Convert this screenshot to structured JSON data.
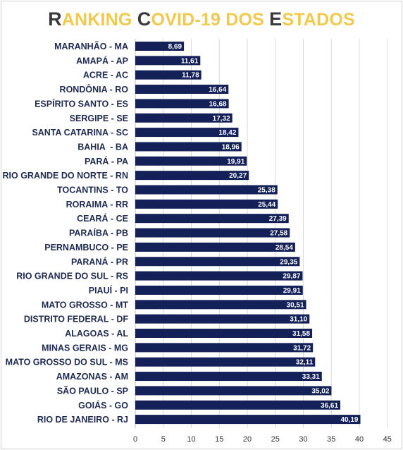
{
  "title": {
    "segments": [
      {
        "text": "R",
        "style": "cap"
      },
      {
        "text": "ANKING ",
        "style": "rest"
      },
      {
        "text": "C",
        "style": "cap"
      },
      {
        "text": "OVID-19 DOS ",
        "style": "rest"
      },
      {
        "text": "E",
        "style": "cap"
      },
      {
        "text": "STADOS",
        "style": "rest"
      }
    ]
  },
  "colors": {
    "bar": "#142159",
    "title_cap": "#3a3a3a",
    "title_rest": "#f2c94c",
    "grid": "#d9d9d9"
  },
  "chart_data": {
    "type": "bar",
    "orientation": "horizontal",
    "title": "RANKING COVID-19 DOS ESTADOS",
    "xlabel": "",
    "ylabel": "",
    "xlim": [
      0,
      45
    ],
    "xticks": [
      0,
      5,
      10,
      15,
      20,
      25,
      30,
      35,
      40,
      45
    ],
    "grid": true,
    "legend": "none",
    "categories": [
      "MARANHÃO - MA",
      "AMAPÁ - AP",
      "ACRE - AC",
      "RONDÔNIA - RO",
      "ESPÍRITO SANTO - ES",
      "SERGIPE - SE",
      "SANTA CATARINA - SC",
      "BAHIA  - BA",
      "PARÁ - PA",
      "RIO GRANDE DO NORTE - RN",
      "TOCANTINS - TO",
      "RORAIMA - RR",
      "CEARÁ - CE",
      "PARAÍBA - PB",
      "PERNAMBUCO - PE",
      "PARANÁ - PR",
      "RIO GRANDE DO SUL - RS",
      "PIAUÍ - PI",
      "MATO GROSSO - MT",
      "DISTRITO FEDERAL - DF",
      "ALAGOAS - AL",
      "MINAS GERAIS - MG",
      "MATO GROSSO DO SUL - MS",
      "AMAZONAS - AM",
      "SÃO PAULO - SP",
      "GOIÁS - GO",
      "RIO DE JANEIRO - RJ"
    ],
    "values": [
      8.69,
      11.61,
      11.78,
      16.64,
      16.68,
      17.32,
      18.42,
      18.96,
      19.91,
      20.27,
      25.38,
      25.44,
      27.39,
      27.58,
      28.54,
      29.35,
      29.87,
      29.91,
      30.51,
      31.1,
      31.58,
      31.72,
      32.11,
      33.31,
      35.02,
      36.61,
      40.19
    ],
    "value_labels": [
      "8,69",
      "11,61",
      "11,78",
      "16,64",
      "16,68",
      "17,32",
      "18,42",
      "18,96",
      "19,91",
      "20,27",
      "25,38",
      "25,44",
      "27,39",
      "27,58",
      "28,54",
      "29,35",
      "29,87",
      "29,91",
      "30,51",
      "31,10",
      "31,58",
      "31,72",
      "32,11",
      "33,31",
      "35,02",
      "36,61",
      "40,19"
    ]
  }
}
